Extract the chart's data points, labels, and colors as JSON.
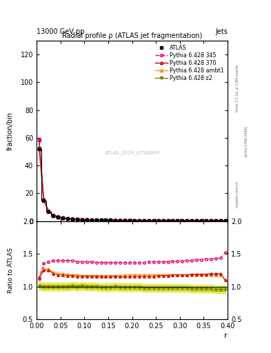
{
  "title": "Radial profile ρ (ATLAS jet fragmentation)",
  "top_left_label": "13000 GeV pp",
  "top_right_label": "Jets",
  "ylabel_main": "fraction/bin",
  "ylabel_ratio": "Ratio to ATLAS",
  "xlabel": "r",
  "watermark": "ATLAS_2019_I1740909",
  "rivet_label": "Rivet 3.1.10, ≥ 2.8M events",
  "arxiv_label": "[arXiv:1306.3436]",
  "mcplots_label": "mcplots.cern.ch",
  "r_values": [
    0.005,
    0.015,
    0.025,
    0.035,
    0.045,
    0.055,
    0.065,
    0.075,
    0.085,
    0.095,
    0.105,
    0.115,
    0.125,
    0.135,
    0.145,
    0.155,
    0.165,
    0.175,
    0.185,
    0.195,
    0.205,
    0.215,
    0.225,
    0.235,
    0.245,
    0.255,
    0.265,
    0.275,
    0.285,
    0.295,
    0.305,
    0.315,
    0.325,
    0.335,
    0.345,
    0.355,
    0.365,
    0.375,
    0.385,
    0.395
  ],
  "atlas_values": [
    52.0,
    14.5,
    7.0,
    4.0,
    2.8,
    2.1,
    1.7,
    1.4,
    1.2,
    1.0,
    0.9,
    0.8,
    0.7,
    0.65,
    0.6,
    0.55,
    0.5,
    0.48,
    0.45,
    0.43,
    0.41,
    0.4,
    0.38,
    0.37,
    0.36,
    0.35,
    0.34,
    0.33,
    0.32,
    0.31,
    0.3,
    0.29,
    0.28,
    0.27,
    0.26,
    0.25,
    0.24,
    0.23,
    0.22,
    0.21
  ],
  "pythia345_values": [
    59.0,
    15.5,
    7.5,
    4.3,
    3.1,
    2.35,
    1.9,
    1.6,
    1.35,
    1.15,
    1.05,
    0.95,
    0.85,
    0.78,
    0.73,
    0.68,
    0.63,
    0.6,
    0.57,
    0.55,
    0.53,
    0.52,
    0.5,
    0.49,
    0.48,
    0.47,
    0.46,
    0.45,
    0.44,
    0.43,
    0.42,
    0.41,
    0.4,
    0.39,
    0.38,
    0.37,
    0.36,
    0.35,
    0.34,
    0.36
  ],
  "pythia370_values": [
    58.5,
    15.2,
    7.3,
    4.2,
    3.0,
    2.28,
    1.85,
    1.55,
    1.3,
    1.1,
    1.0,
    0.9,
    0.8,
    0.73,
    0.68,
    0.63,
    0.58,
    0.55,
    0.52,
    0.5,
    0.48,
    0.47,
    0.45,
    0.44,
    0.43,
    0.42,
    0.41,
    0.4,
    0.39,
    0.38,
    0.37,
    0.36,
    0.35,
    0.34,
    0.33,
    0.32,
    0.31,
    0.3,
    0.29,
    0.28
  ],
  "pythia_ambt1_values": [
    59.5,
    15.3,
    7.4,
    4.25,
    3.05,
    2.32,
    1.88,
    1.58,
    1.32,
    1.12,
    1.02,
    0.92,
    0.82,
    0.75,
    0.7,
    0.65,
    0.6,
    0.57,
    0.54,
    0.52,
    0.5,
    0.49,
    0.47,
    0.46,
    0.45,
    0.44,
    0.43,
    0.42,
    0.41,
    0.4,
    0.39,
    0.38,
    0.37,
    0.36,
    0.35,
    0.34,
    0.33,
    0.32,
    0.31,
    0.3
  ],
  "pythia_z2_values": [
    52.5,
    14.5,
    7.0,
    4.0,
    2.82,
    2.12,
    1.72,
    1.42,
    1.21,
    1.01,
    0.91,
    0.81,
    0.71,
    0.65,
    0.6,
    0.55,
    0.51,
    0.48,
    0.45,
    0.43,
    0.41,
    0.4,
    0.38,
    0.37,
    0.36,
    0.35,
    0.34,
    0.33,
    0.32,
    0.31,
    0.3,
    0.29,
    0.28,
    0.27,
    0.26,
    0.25,
    0.24,
    0.23,
    0.22,
    0.21
  ],
  "ratio_345": [
    1.13,
    1.35,
    1.38,
    1.4,
    1.4,
    1.4,
    1.4,
    1.4,
    1.38,
    1.38,
    1.38,
    1.38,
    1.37,
    1.37,
    1.37,
    1.37,
    1.37,
    1.37,
    1.37,
    1.37,
    1.37,
    1.37,
    1.37,
    1.38,
    1.38,
    1.38,
    1.38,
    1.38,
    1.39,
    1.39,
    1.39,
    1.4,
    1.4,
    1.41,
    1.41,
    1.42,
    1.42,
    1.43,
    1.44,
    1.52
  ],
  "ratio_370": [
    1.12,
    1.25,
    1.25,
    1.2,
    1.18,
    1.18,
    1.17,
    1.17,
    1.16,
    1.16,
    1.16,
    1.16,
    1.16,
    1.15,
    1.15,
    1.15,
    1.16,
    1.15,
    1.15,
    1.15,
    1.16,
    1.16,
    1.16,
    1.16,
    1.16,
    1.17,
    1.17,
    1.17,
    1.18,
    1.18,
    1.18,
    1.18,
    1.19,
    1.19,
    1.19,
    1.19,
    1.2,
    1.2,
    1.2,
    1.1
  ],
  "ratio_ambt1": [
    1.14,
    1.28,
    1.27,
    1.22,
    1.2,
    1.2,
    1.19,
    1.18,
    1.18,
    1.17,
    1.17,
    1.17,
    1.17,
    1.17,
    1.17,
    1.17,
    1.17,
    1.17,
    1.18,
    1.18,
    1.18,
    1.18,
    1.18,
    1.18,
    1.18,
    1.18,
    1.18,
    1.18,
    1.18,
    1.18,
    1.18,
    1.18,
    1.18,
    1.18,
    1.18,
    1.18,
    1.18,
    1.18,
    1.18,
    1.1
  ],
  "ratio_z2": [
    1.01,
    1.0,
    1.0,
    1.0,
    1.0,
    1.0,
    1.0,
    1.01,
    1.0,
    1.01,
    1.0,
    1.0,
    1.0,
    0.99,
    0.99,
    0.99,
    1.0,
    0.99,
    0.99,
    0.99,
    0.99,
    0.99,
    0.98,
    0.98,
    0.98,
    0.98,
    0.98,
    0.98,
    0.98,
    0.98,
    0.98,
    0.98,
    0.97,
    0.97,
    0.97,
    0.97,
    0.97,
    0.96,
    0.96,
    0.96
  ],
  "color_atlas": "#000000",
  "color_345": "#e8006c",
  "color_370": "#cc0000",
  "color_ambt1": "#ff8c00",
  "color_z2": "#808000",
  "ylim_main": [
    0,
    130
  ],
  "ylim_ratio": [
    0.5,
    2.0
  ],
  "xlim": [
    0,
    0.4
  ],
  "yticks_main": [
    0,
    20,
    40,
    60,
    80,
    100,
    120
  ],
  "yticks_ratio": [
    0.5,
    1.0,
    1.5,
    2.0
  ],
  "background_color": "#ffffff"
}
